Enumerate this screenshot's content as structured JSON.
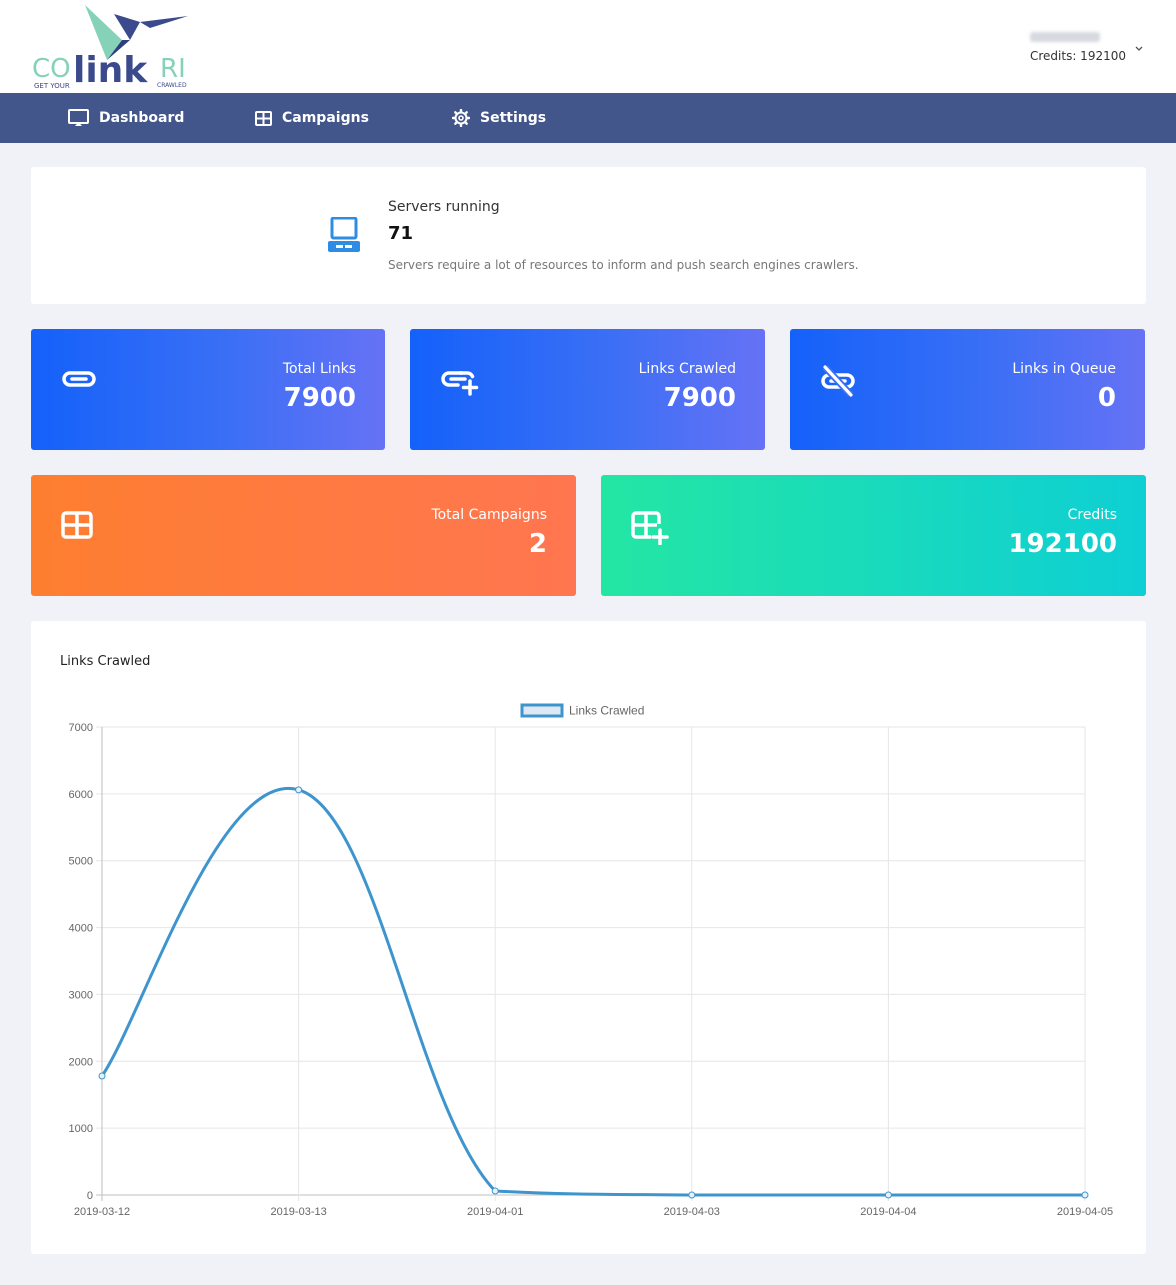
{
  "brand": {
    "logo_text_left": "CO",
    "logo_text_mid": "link",
    "logo_text_right": "RI",
    "tagline_left": "GET YOUR",
    "tagline_right": "CRAWLED",
    "colors": {
      "teal": "#86d2b8",
      "navy": "#3b4a8c"
    }
  },
  "user": {
    "name": "",
    "credits_label": "Credits: 192100",
    "caret_icon": "chevron-down-icon"
  },
  "nav": {
    "items": [
      {
        "label": "Dashboard",
        "icon": "monitor-icon"
      },
      {
        "label": "Campaigns",
        "icon": "table-icon"
      },
      {
        "label": "Settings",
        "icon": "gear-icon"
      }
    ]
  },
  "servers": {
    "title": "Servers running",
    "value": "71",
    "description": "Servers require a lot of resources to inform and push search engines crawlers.",
    "icon": "computer-icon",
    "icon_color": "#2f8ce4"
  },
  "stats": [
    {
      "label": "Total Links",
      "value": "7900",
      "icon": "link-icon"
    },
    {
      "label": "Links Crawled",
      "value": "7900",
      "icon": "link-plus-icon"
    },
    {
      "label": "Links in Queue",
      "value": "0",
      "icon": "link-off-icon"
    },
    {
      "label": "Total Campaigns",
      "value": "2",
      "icon": "table-icon"
    },
    {
      "label": "Credits",
      "value": "192100",
      "icon": "table-plus-icon"
    }
  ],
  "chart_section": {
    "title": "Links Crawled"
  },
  "chart_data": {
    "type": "line",
    "title": "",
    "categories": [
      "2019-03-12",
      "2019-03-13",
      "2019-04-01",
      "2019-04-03",
      "2019-04-04",
      "2019-04-05"
    ],
    "series": [
      {
        "name": "Links Crawled",
        "values": [
          1780,
          6060,
          60,
          0,
          0,
          0
        ],
        "color": "#3e95cd"
      }
    ],
    "y_ticks": [
      0,
      1000,
      2000,
      3000,
      4000,
      5000,
      6000,
      7000
    ],
    "ylim": [
      0,
      7000
    ],
    "xlabel": "",
    "ylabel": "",
    "grid": true,
    "legend": "top-center"
  }
}
